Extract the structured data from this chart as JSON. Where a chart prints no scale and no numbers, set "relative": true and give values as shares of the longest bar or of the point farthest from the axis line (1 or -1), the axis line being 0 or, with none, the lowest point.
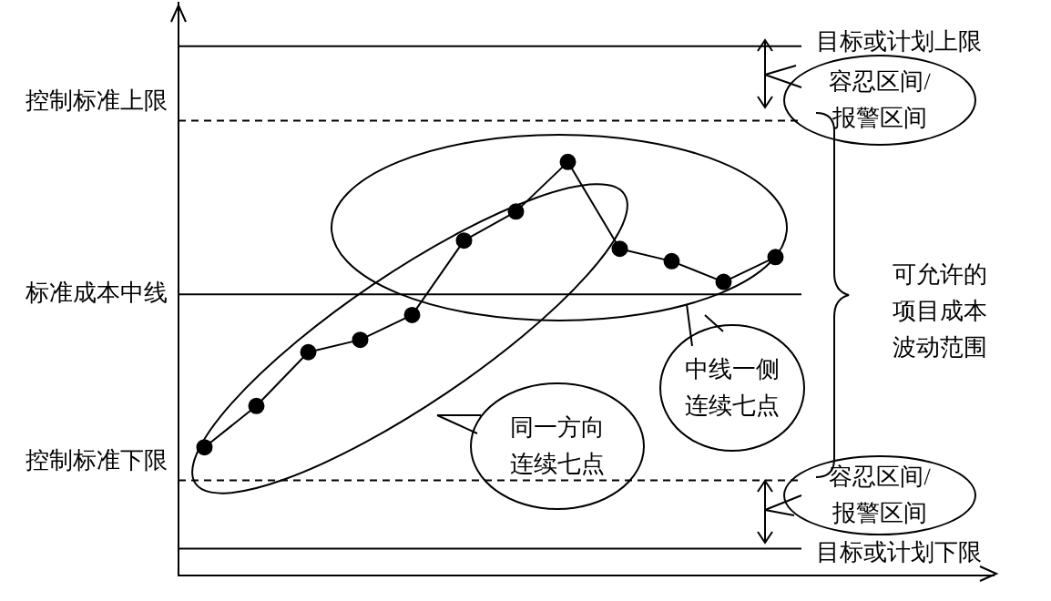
{
  "chart_data": {
    "type": "line",
    "relative": true,
    "tick_labels": false,
    "marker": "circle",
    "categories": [
      null,
      null,
      null,
      null,
      null,
      null,
      null,
      null,
      null,
      null,
      null,
      null
    ],
    "series": [
      {
        "color": "#000000",
        "values": [
          0.31,
          0.41,
          0.54,
          0.57,
          0.63,
          0.81,
          0.88,
          1,
          0.79,
          0.76,
          0.71,
          0.77
        ]
      }
    ],
    "ref_lines": [
      {
        "axis": "y",
        "value": 1.28,
        "label": "目标或计划上限",
        "line_style": "solid"
      },
      {
        "axis": "y",
        "value": 1.1,
        "label": "控制标准上限",
        "line_style": "dashed"
      },
      {
        "axis": "y",
        "value": 0.68,
        "label": "标准成本中线",
        "line_style": "solid"
      },
      {
        "axis": "y",
        "value": 0.23,
        "label": "控制标准下限",
        "line_style": "dashed"
      },
      {
        "axis": "y",
        "value": 0.065,
        "label": "目标或计划下限",
        "line_style": "solid"
      }
    ],
    "annotations": [
      "容忍区间/报警区间",
      "容忍区间/报警区间",
      "可允许的项目成本波动范围",
      "中线一侧连续七点",
      "同一方向连续七点"
    ]
  }
}
